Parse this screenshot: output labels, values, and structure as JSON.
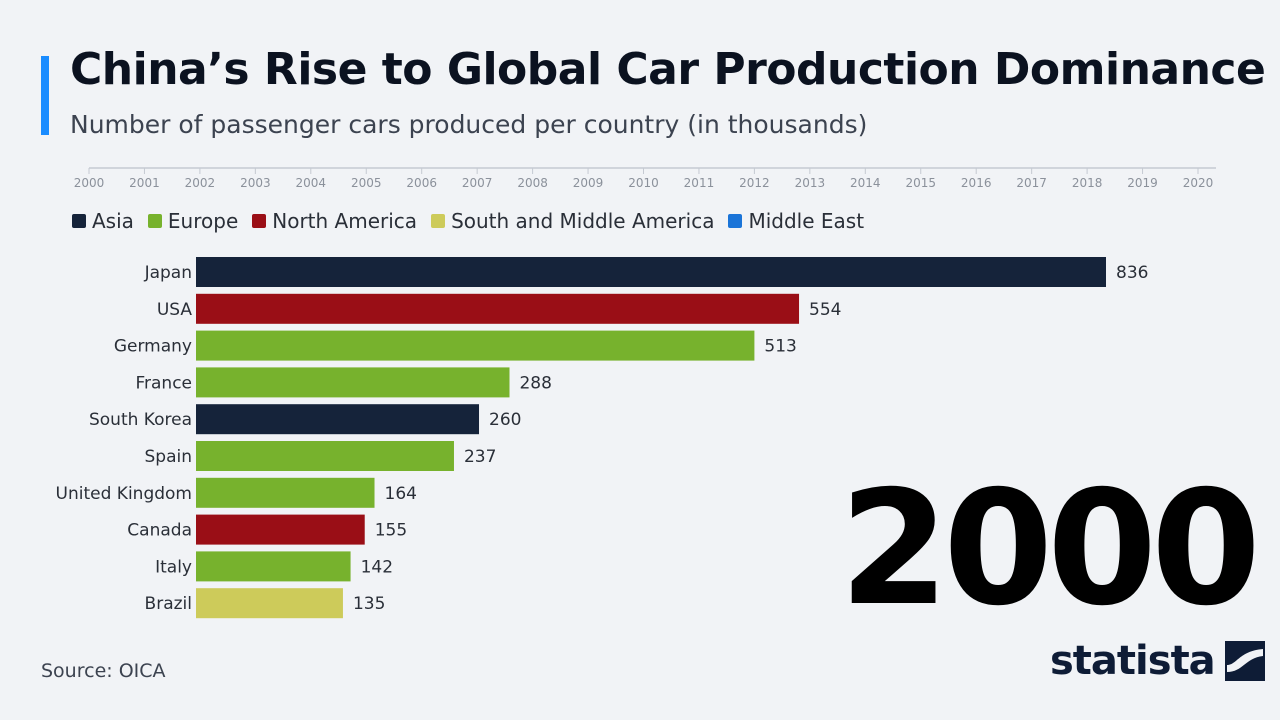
{
  "header": {
    "title": "China’s Rise to Global Car Production Dominance",
    "subtitle": "Number of passenger cars produced per country (in thousands)"
  },
  "timeline": {
    "years": [
      "2000",
      "2001",
      "2002",
      "2003",
      "2004",
      "2005",
      "2006",
      "2007",
      "2008",
      "2009",
      "2010",
      "2011",
      "2012",
      "2013",
      "2014",
      "2015",
      "2016",
      "2017",
      "2018",
      "2019",
      "2020"
    ]
  },
  "legend": [
    {
      "label": "Asia",
      "color": "#15233a"
    },
    {
      "label": "Europe",
      "color": "#77b22d"
    },
    {
      "label": "North America",
      "color": "#9a0e16"
    },
    {
      "label": "South and Middle America",
      "color": "#cdcb5a"
    },
    {
      "label": "Middle East",
      "color": "#1a74d8"
    }
  ],
  "current_year": "2000",
  "footer": {
    "source": "Source: OICA",
    "brand": "statista"
  },
  "chart_data": {
    "type": "bar",
    "orientation": "horizontal",
    "title": "China’s Rise to Global Car Production Dominance",
    "subtitle": "Number of passenger cars produced per country (in thousands)",
    "year": "2000",
    "categories": [
      "Japan",
      "USA",
      "Germany",
      "France",
      "South Korea",
      "Spain",
      "United Kingdom",
      "Canada",
      "Italy",
      "Brazil"
    ],
    "values": [
      836,
      554,
      513,
      288,
      260,
      237,
      164,
      155,
      142,
      135
    ],
    "regions": [
      "Asia",
      "North America",
      "Europe",
      "Europe",
      "Asia",
      "Europe",
      "Europe",
      "North America",
      "Europe",
      "South and Middle America"
    ],
    "legend_position": "top-left"
  }
}
